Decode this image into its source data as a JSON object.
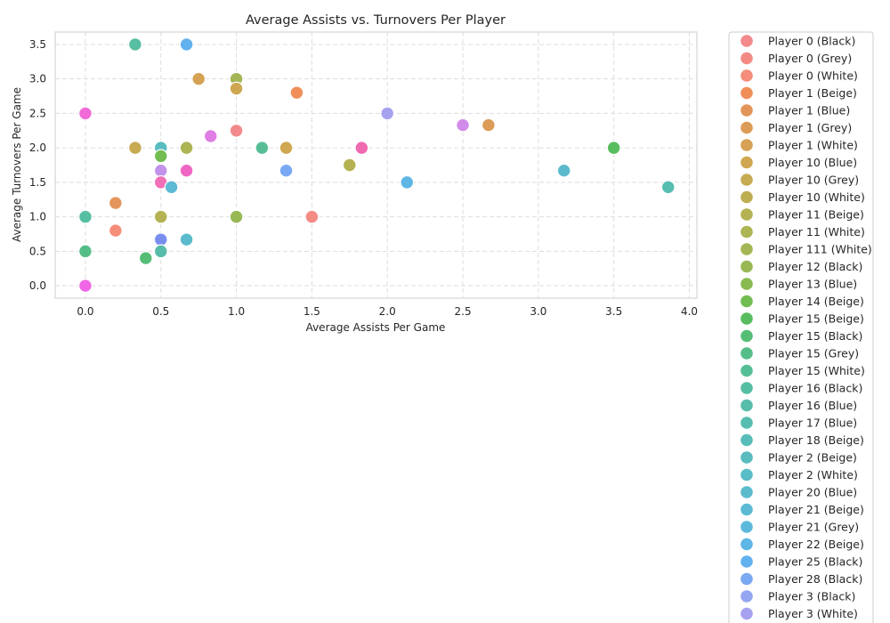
{
  "chart_data": {
    "type": "scatter",
    "title": "Average Assists vs. Turnovers Per Player",
    "xlabel": "Average Assists Per Game",
    "ylabel": "Average Turnovers Per Game",
    "xlim": [
      -0.2,
      4.05
    ],
    "ylim": [
      -0.18,
      3.68
    ],
    "xticks": [
      "0.0",
      "0.5",
      "1.0",
      "1.5",
      "2.0",
      "2.5",
      "3.0",
      "3.5",
      "4.0"
    ],
    "yticks": [
      "0.0",
      "0.5",
      "1.0",
      "1.5",
      "2.0",
      "2.5",
      "3.0",
      "3.5"
    ],
    "grid": true,
    "legend_position": "outside-right",
    "legend": [
      {
        "label": "Player 0 (Black)",
        "color": "#f28a8c"
      },
      {
        "label": "Player 0 (Grey)",
        "color": "#f38b84"
      },
      {
        "label": "Player 0 (White)",
        "color": "#f48d7a"
      },
      {
        "label": "Player 1 (Beige)",
        "color": "#f08f5a"
      },
      {
        "label": "Player 1 (Blue)",
        "color": "#e3955a"
      },
      {
        "label": "Player 1 (Grey)",
        "color": "#dc9c58"
      },
      {
        "label": "Player 1 (White)",
        "color": "#d5a154"
      },
      {
        "label": "Player 10 (Blue)",
        "color": "#cfa751"
      },
      {
        "label": "Player 10 (Grey)",
        "color": "#c7aa52"
      },
      {
        "label": "Player 10 (White)",
        "color": "#bdae52"
      },
      {
        "label": "Player 11 (Beige)",
        "color": "#b4b253"
      },
      {
        "label": "Player 11 (White)",
        "color": "#acb454"
      },
      {
        "label": "Player 111 (White)",
        "color": "#a3b655"
      },
      {
        "label": "Player 12 (Black)",
        "color": "#97b854"
      },
      {
        "label": "Player 13 (Blue)",
        "color": "#88ba52"
      },
      {
        "label": "Player 14 (Beige)",
        "color": "#72bc52"
      },
      {
        "label": "Player 15 (Beige)",
        "color": "#58bd5e"
      },
      {
        "label": "Player 15 (Black)",
        "color": "#56bd76"
      },
      {
        "label": "Player 15 (Grey)",
        "color": "#55be88"
      },
      {
        "label": "Player 15 (White)",
        "color": "#56be96"
      },
      {
        "label": "Player 16 (Black)",
        "color": "#56bea2"
      },
      {
        "label": "Player 16 (Blue)",
        "color": "#57bdaa"
      },
      {
        "label": "Player 17 (Blue)",
        "color": "#57bdb1"
      },
      {
        "label": "Player 18 (Beige)",
        "color": "#58bdb8"
      },
      {
        "label": "Player 2 (Beige)",
        "color": "#59bcbf"
      },
      {
        "label": "Player 2 (White)",
        "color": "#5abcc6"
      },
      {
        "label": "Player 20 (Blue)",
        "color": "#5bbbcd"
      },
      {
        "label": "Player 21 (Beige)",
        "color": "#5cbad4"
      },
      {
        "label": "Player 21 (Grey)",
        "color": "#5db9dc"
      },
      {
        "label": "Player 22 (Beige)",
        "color": "#5eb6e5"
      },
      {
        "label": "Player 25 (Black)",
        "color": "#62b1ef"
      },
      {
        "label": "Player 28 (Black)",
        "color": "#7aa8f3"
      },
      {
        "label": "Player 3 (Black)",
        "color": "#94a5f1"
      },
      {
        "label": "Player 3 (White)",
        "color": "#a6a2f0"
      }
    ],
    "points": [
      {
        "x": 0.33,
        "y": 3.5,
        "color": "#56bea2"
      },
      {
        "x": 0.67,
        "y": 3.5,
        "color": "#62b1ef"
      },
      {
        "x": 0.75,
        "y": 3.0,
        "color": "#d5a154"
      },
      {
        "x": 1.0,
        "y": 3.0,
        "color": "#a3b655"
      },
      {
        "x": 1.0,
        "y": 2.86,
        "color": "#cfa751"
      },
      {
        "x": 1.4,
        "y": 2.8,
        "color": "#f08f5a"
      },
      {
        "x": 0.0,
        "y": 2.5,
        "color": "#f06ad8"
      },
      {
        "x": 2.0,
        "y": 2.5,
        "color": "#a6a2f0"
      },
      {
        "x": 2.5,
        "y": 2.33,
        "color": "#d18be8"
      },
      {
        "x": 2.67,
        "y": 2.33,
        "color": "#dc9c58"
      },
      {
        "x": 1.0,
        "y": 2.25,
        "color": "#f28a8c"
      },
      {
        "x": 0.83,
        "y": 2.17,
        "color": "#e07ee6"
      },
      {
        "x": 0.33,
        "y": 2.0,
        "color": "#c7aa52"
      },
      {
        "x": 0.5,
        "y": 2.0,
        "color": "#59bcbf"
      },
      {
        "x": 0.67,
        "y": 2.0,
        "color": "#acb454"
      },
      {
        "x": 1.17,
        "y": 2.0,
        "color": "#56be96"
      },
      {
        "x": 1.33,
        "y": 2.0,
        "color": "#cfa751"
      },
      {
        "x": 1.83,
        "y": 2.0,
        "color": "#f06ab2"
      },
      {
        "x": 3.5,
        "y": 2.0,
        "color": "#58bd5e"
      },
      {
        "x": 0.5,
        "y": 1.88,
        "color": "#72bc52"
      },
      {
        "x": 1.75,
        "y": 1.75,
        "color": "#b4b253"
      },
      {
        "x": 0.5,
        "y": 1.67,
        "color": "#c393ec"
      },
      {
        "x": 0.67,
        "y": 1.67,
        "color": "#f066c4"
      },
      {
        "x": 1.33,
        "y": 1.67,
        "color": "#7aa8f3"
      },
      {
        "x": 3.17,
        "y": 1.67,
        "color": "#5bbbcd"
      },
      {
        "x": 0.5,
        "y": 1.5,
        "color": "#f070b8"
      },
      {
        "x": 2.13,
        "y": 1.5,
        "color": "#5eb6e5"
      },
      {
        "x": 0.57,
        "y": 1.43,
        "color": "#5cbad4"
      },
      {
        "x": 3.86,
        "y": 1.43,
        "color": "#57bdb1"
      },
      {
        "x": 0.2,
        "y": 1.2,
        "color": "#e3955a"
      },
      {
        "x": 0.0,
        "y": 1.0,
        "color": "#56bea2"
      },
      {
        "x": 0.5,
        "y": 1.0,
        "color": "#b4b253"
      },
      {
        "x": 1.0,
        "y": 1.0,
        "color": "#97b854"
      },
      {
        "x": 1.5,
        "y": 1.0,
        "color": "#f38b84"
      },
      {
        "x": 0.2,
        "y": 0.8,
        "color": "#f48d7a"
      },
      {
        "x": 0.5,
        "y": 0.67,
        "color": "#7a8ef0"
      },
      {
        "x": 0.67,
        "y": 0.67,
        "color": "#5bbbcd"
      },
      {
        "x": 0.0,
        "y": 0.5,
        "color": "#55be88"
      },
      {
        "x": 0.5,
        "y": 0.5,
        "color": "#57bdaa"
      },
      {
        "x": 0.4,
        "y": 0.4,
        "color": "#56bd76"
      },
      {
        "x": 0.0,
        "y": 0.0,
        "color": "#f066e6"
      }
    ]
  }
}
